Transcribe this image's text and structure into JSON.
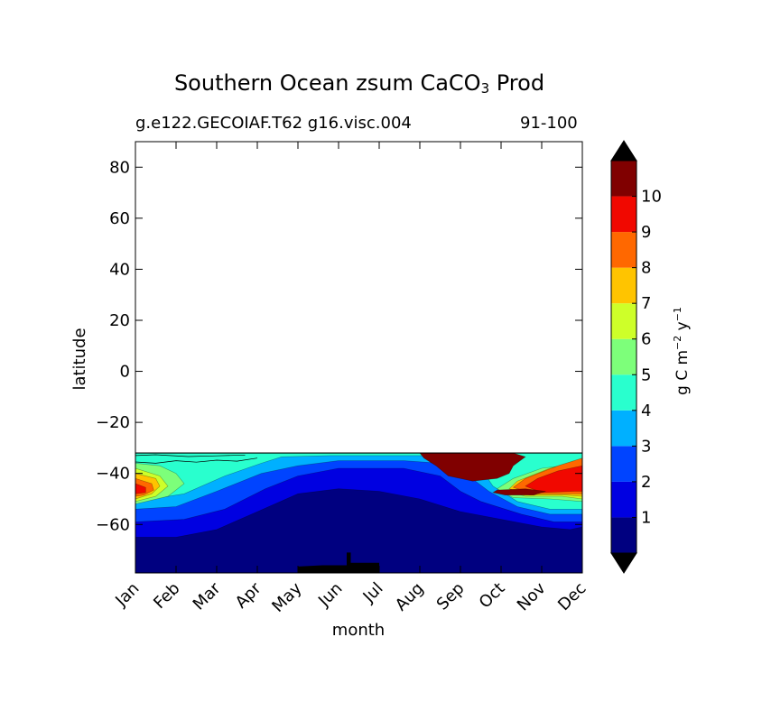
{
  "chart_data": {
    "type": "heatmap",
    "title": "Southern Ocean zsum CaCO",
    "title_subscript": "3",
    "title_suffix": " Prod",
    "subtitle_left": "g.e122.GECOIAF.T62 g16.visc.004",
    "subtitle_right": "91-100",
    "xlabel": "month",
    "ylabel": "latitude",
    "x_categories": [
      "Jan",
      "Feb",
      "Mar",
      "Apr",
      "May",
      "Jun",
      "Jul",
      "Aug",
      "Sep",
      "Oct",
      "Nov",
      "Dec"
    ],
    "xlim": [
      0,
      11
    ],
    "ylim": [
      -79,
      90
    ],
    "yticks": [
      -60,
      -40,
      -20,
      0,
      20,
      40,
      60,
      80
    ],
    "ytick_labels": [
      "−60",
      "−40",
      "−20",
      "0",
      "20",
      "40",
      "60",
      "80"
    ],
    "data_top_latitude": -32,
    "colorbar": {
      "label_main": "g C m",
      "label_exp1": "−2",
      "label_mid": " y",
      "label_exp2": "−1",
      "levels": [
        0,
        1,
        2,
        3,
        4,
        5,
        6,
        7,
        8,
        9,
        10,
        11
      ],
      "tick_labels": [
        "1",
        "2",
        "3",
        "4",
        "5",
        "6",
        "7",
        "8",
        "9",
        "10"
      ],
      "colors": [
        "#000080",
        "#0000e1",
        "#0044ff",
        "#00b0ff",
        "#29ffce",
        "#7dff7a",
        "#ceff29",
        "#ffc400",
        "#ff6800",
        "#f10800",
        "#800000"
      ],
      "extend_min_color": "#000000",
      "extend_max_color": "#000000"
    },
    "contour_bands": [
      {
        "level": 0,
        "points": [
          [
            0,
            -32
          ],
          [
            11,
            -32
          ],
          [
            11,
            -79
          ],
          [
            0,
            -79
          ]
        ]
      },
      {
        "level": 1,
        "points": [
          [
            0,
            -32
          ],
          [
            11,
            -32
          ],
          [
            11,
            -61
          ],
          [
            10.7,
            -62
          ],
          [
            10,
            -61
          ],
          [
            9,
            -58
          ],
          [
            8,
            -55
          ],
          [
            7,
            -50
          ],
          [
            6,
            -47
          ],
          [
            5,
            -46
          ],
          [
            4,
            -48
          ],
          [
            3,
            -55
          ],
          [
            2,
            -62
          ],
          [
            1,
            -65
          ],
          [
            0,
            -65
          ]
        ]
      },
      {
        "level": 2,
        "points": [
          [
            0,
            -32
          ],
          [
            11,
            -32
          ],
          [
            11,
            -59
          ],
          [
            10.3,
            -59
          ],
          [
            9.5,
            -56
          ],
          [
            8.5,
            -51
          ],
          [
            8,
            -47
          ],
          [
            7.5,
            -41
          ],
          [
            6.6,
            -38
          ],
          [
            5,
            -38
          ],
          [
            4,
            -41
          ],
          [
            3.2,
            -46
          ],
          [
            2.2,
            -54
          ],
          [
            1.2,
            -58
          ],
          [
            0,
            -59
          ]
        ]
      },
      {
        "level": 3,
        "points": [
          [
            0,
            -32
          ],
          [
            11,
            -32
          ],
          [
            11,
            -56
          ],
          [
            10.2,
            -56
          ],
          [
            9.4,
            -53
          ],
          [
            8.7,
            -47
          ],
          [
            8.2,
            -41
          ],
          [
            7.5,
            -36
          ],
          [
            6.6,
            -35
          ],
          [
            5,
            -35
          ],
          [
            4,
            -37
          ],
          [
            3.1,
            -40
          ],
          [
            2,
            -47
          ],
          [
            1,
            -53
          ],
          [
            0,
            -54
          ]
        ]
      },
      {
        "level": 4,
        "points": [
          [
            0,
            -32
          ],
          [
            11,
            -32
          ],
          [
            11,
            -54
          ],
          [
            10.2,
            -54
          ],
          [
            9.4,
            -51
          ],
          [
            8.8,
            -45
          ],
          [
            8.5,
            -38
          ],
          [
            8.1,
            -34
          ],
          [
            7,
            -33
          ],
          [
            6,
            -33
          ],
          [
            4.8,
            -33
          ],
          [
            3.6,
            -33.5
          ],
          [
            3.1,
            -36
          ],
          [
            2.2,
            -41
          ],
          [
            1.2,
            -48
          ],
          [
            0,
            -51
          ]
        ]
      },
      {
        "level": 5,
        "points": [
          [
            0,
            -36
          ],
          [
            0.6,
            -37
          ],
          [
            1,
            -40
          ],
          [
            1.2,
            -44
          ],
          [
            0.8,
            -49
          ],
          [
            0,
            -52
          ]
        ]
      },
      {
        "level": 5,
        "points": [
          [
            11,
            -36
          ],
          [
            10,
            -38
          ],
          [
            9.3,
            -42
          ],
          [
            8.9,
            -46
          ],
          [
            9.3,
            -49.5
          ],
          [
            10.2,
            -50
          ],
          [
            11,
            -51
          ]
        ]
      },
      {
        "level": 6,
        "points": [
          [
            0,
            -38
          ],
          [
            0.6,
            -41
          ],
          [
            0.8,
            -45
          ],
          [
            0.5,
            -49
          ],
          [
            0,
            -51
          ]
        ]
      },
      {
        "level": 6,
        "points": [
          [
            11,
            -37
          ],
          [
            10.1,
            -40
          ],
          [
            9.4,
            -44
          ],
          [
            9.2,
            -47
          ],
          [
            9.6,
            -49
          ],
          [
            10.5,
            -49
          ],
          [
            11,
            -50
          ]
        ]
      },
      {
        "level": 7,
        "points": [
          [
            0,
            -40
          ],
          [
            0.5,
            -42
          ],
          [
            0.6,
            -45
          ],
          [
            0.4,
            -48
          ],
          [
            0,
            -50
          ]
        ]
      },
      {
        "level": 7,
        "points": [
          [
            11,
            -35
          ],
          [
            10.2,
            -38
          ],
          [
            9.4,
            -43
          ],
          [
            9.2,
            -46
          ],
          [
            9.7,
            -48.5
          ],
          [
            10.6,
            -48.5
          ],
          [
            11,
            -49
          ]
        ]
      },
      {
        "level": 8,
        "points": [
          [
            0,
            -42
          ],
          [
            0.4,
            -44
          ],
          [
            0.45,
            -46.5
          ],
          [
            0.2,
            -48.5
          ],
          [
            0,
            -49
          ]
        ]
      },
      {
        "level": 8,
        "points": [
          [
            11,
            -34
          ],
          [
            10.4,
            -37
          ],
          [
            9.6,
            -42
          ],
          [
            9.3,
            -45.5
          ],
          [
            9.8,
            -48
          ],
          [
            10.7,
            -48
          ],
          [
            11,
            -48
          ]
        ]
      },
      {
        "level": 9,
        "points": [
          [
            0,
            -44
          ],
          [
            0.25,
            -45.5
          ],
          [
            0.25,
            -47.5
          ],
          [
            0,
            -48
          ]
        ]
      },
      {
        "level": 9,
        "points": [
          [
            11,
            -37
          ],
          [
            10.4,
            -39
          ],
          [
            9.9,
            -42
          ],
          [
            9.6,
            -45
          ],
          [
            10,
            -47.5
          ],
          [
            10.8,
            -47
          ],
          [
            11,
            -47
          ]
        ]
      },
      {
        "level": 10,
        "points": [
          [
            7,
            -32
          ],
          [
            9.3,
            -32
          ],
          [
            9.6,
            -33.5
          ],
          [
            9.3,
            -37
          ],
          [
            9.2,
            -40
          ],
          [
            8.9,
            -42
          ],
          [
            8.3,
            -43
          ],
          [
            7.7,
            -41
          ],
          [
            7.4,
            -37
          ],
          [
            7.1,
            -34
          ]
        ]
      },
      {
        "level": 10,
        "points": [
          [
            8.9,
            -46.5
          ],
          [
            9.6,
            -46
          ],
          [
            10.1,
            -47
          ],
          [
            9.8,
            -48.5
          ],
          [
            9.1,
            -48.5
          ],
          [
            8.8,
            -47.5
          ]
        ]
      }
    ],
    "land_mask": [
      {
        "points": [
          [
            4,
            -79
          ],
          [
            4,
            -76.5
          ],
          [
            4.6,
            -76
          ],
          [
            5.2,
            -76
          ],
          [
            5.2,
            -71
          ],
          [
            5.3,
            -71
          ],
          [
            5.3,
            -75
          ],
          [
            5.9,
            -75
          ],
          [
            6,
            -75
          ],
          [
            6,
            -79
          ]
        ]
      }
    ],
    "contour_lines": [
      {
        "points": [
          [
            0,
            -33
          ],
          [
            0.5,
            -32.7
          ],
          [
            1.3,
            -33.4
          ],
          [
            2,
            -33.1
          ],
          [
            2.7,
            -32.8
          ]
        ]
      },
      {
        "points": [
          [
            0,
            -35.5
          ],
          [
            0.5,
            -36
          ],
          [
            1,
            -35
          ],
          [
            1.5,
            -35.6
          ],
          [
            2,
            -34.8
          ],
          [
            2.5,
            -35.2
          ],
          [
            3,
            -34
          ]
        ]
      }
    ]
  }
}
